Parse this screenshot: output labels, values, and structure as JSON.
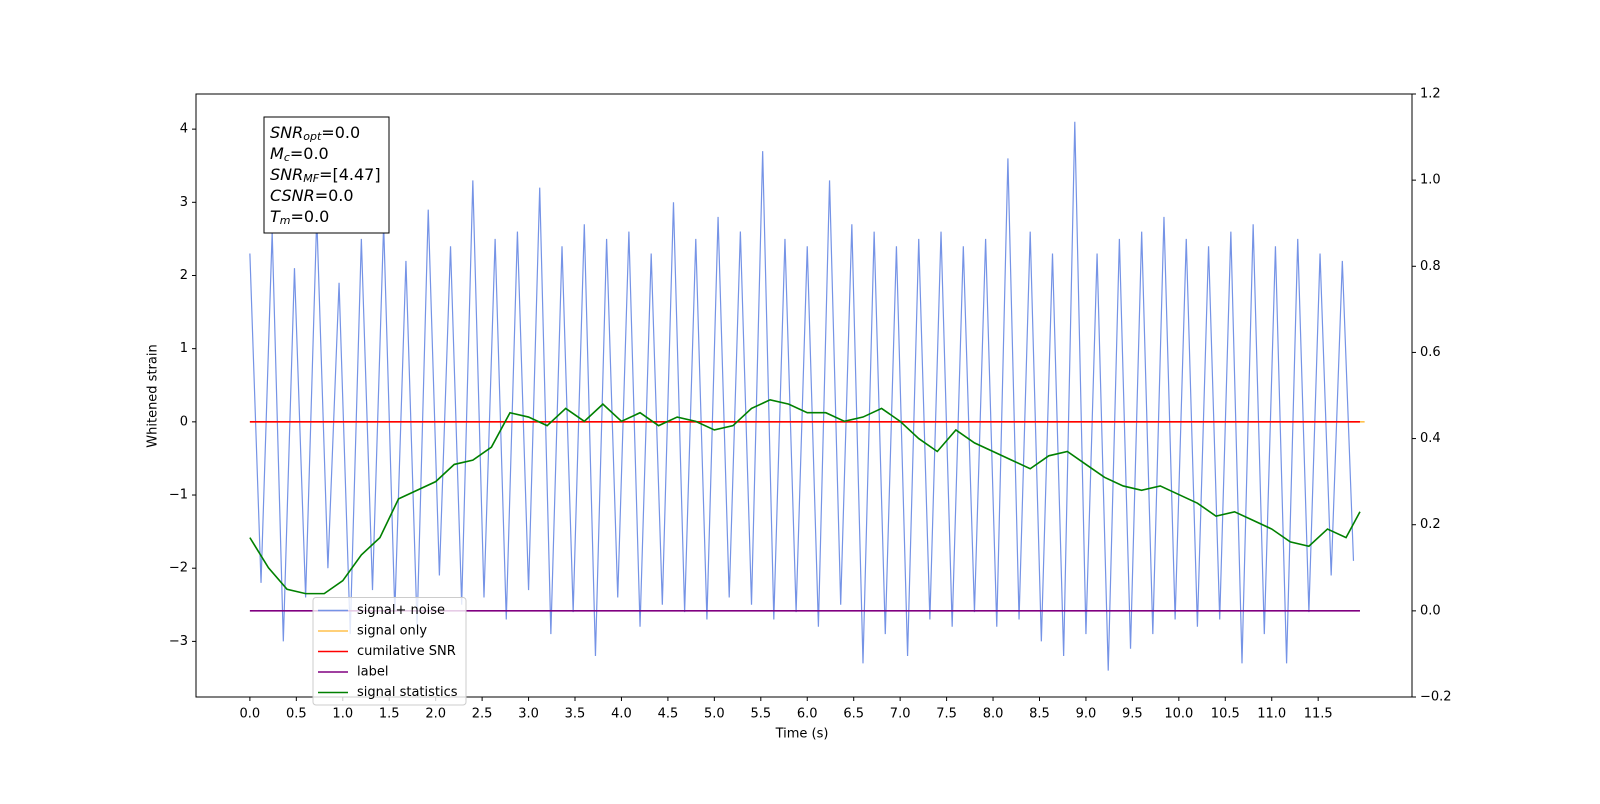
{
  "chart_data": {
    "type": "line",
    "xlabel": "Time (s)",
    "ylabel": "Whitened strain",
    "xlim": [
      -0.58,
      12.51
    ],
    "ylim": [
      -3.76,
      4.48
    ],
    "y2lim": [
      -0.2,
      1.2
    ],
    "xticks": [
      {
        "value": 0,
        "label": "0.0"
      },
      {
        "value": 0.5,
        "label": "0.5"
      },
      {
        "value": 1,
        "label": "1.0"
      },
      {
        "value": 1.5,
        "label": "1.5"
      },
      {
        "value": 2,
        "label": "2.0"
      },
      {
        "value": 2.5,
        "label": "2.5"
      },
      {
        "value": 3,
        "label": "3.0"
      },
      {
        "value": 3.5,
        "label": "3.5"
      },
      {
        "value": 4,
        "label": "4.0"
      },
      {
        "value": 4.5,
        "label": "4.5"
      },
      {
        "value": 5,
        "label": "5.0"
      },
      {
        "value": 5.5,
        "label": "5.5"
      },
      {
        "value": 6,
        "label": "6.0"
      },
      {
        "value": 6.5,
        "label": "6.5"
      },
      {
        "value": 7,
        "label": "7.0"
      },
      {
        "value": 7.5,
        "label": "7.5"
      },
      {
        "value": 8,
        "label": "8.0"
      },
      {
        "value": 8.5,
        "label": "8.5"
      },
      {
        "value": 9,
        "label": "9.0"
      },
      {
        "value": 9.5,
        "label": "9.5"
      },
      {
        "value": 10,
        "label": "10.0"
      },
      {
        "value": 10.5,
        "label": "10.5"
      },
      {
        "value": 11,
        "label": "11.0"
      },
      {
        "value": 11.5,
        "label": "11.5"
      }
    ],
    "yticks": [
      {
        "value": -3,
        "label": "−3"
      },
      {
        "value": -2,
        "label": "−2"
      },
      {
        "value": -1,
        "label": "−1"
      },
      0,
      1,
      2,
      3,
      4
    ],
    "y2ticks": [
      {
        "value": -0.2,
        "label": "−0.2"
      },
      {
        "value": 0,
        "label": "0.0"
      },
      0.2,
      0.4,
      0.6,
      0.8,
      {
        "value": 1,
        "label": "1.0"
      },
      1.2
    ],
    "legend": "lower left",
    "stats_box": [
      {
        "main": "SNR",
        "sub": "opt",
        "rest": "=0.0"
      },
      {
        "main": "M",
        "sub": "c",
        "rest": "=0.0"
      },
      {
        "main": "SNR",
        "sub": "MF",
        "rest": "=[4.47]"
      },
      {
        "main": "CSNR",
        "rest": "=0.0"
      },
      {
        "main": "T",
        "sub": "m",
        "rest": "=0.0"
      }
    ],
    "series": [
      {
        "name": "signal+ noise",
        "color": "#7593e6",
        "x": [
          0,
          0.12,
          0.24,
          0.36,
          0.48,
          0.6,
          0.72,
          0.84,
          0.96,
          1.08,
          1.2,
          1.32,
          1.44,
          1.56,
          1.68,
          1.8,
          1.92,
          2.04,
          2.16,
          2.28,
          2.4,
          2.52,
          2.64,
          2.76,
          2.88,
          3,
          3.12,
          3.24,
          3.36,
          3.48,
          3.6,
          3.72,
          3.84,
          3.96,
          4.08,
          4.2,
          4.32,
          4.44,
          4.56,
          4.68,
          4.8,
          4.92,
          5.04,
          5.16,
          5.28,
          5.4,
          5.52,
          5.64,
          5.76,
          5.88,
          6,
          6.12,
          6.24,
          6.36,
          6.48,
          6.6,
          6.72,
          6.84,
          6.96,
          7.08,
          7.2,
          7.32,
          7.44,
          7.56,
          7.68,
          7.8,
          7.92,
          8.04,
          8.16,
          8.28,
          8.4,
          8.52,
          8.64,
          8.76,
          8.88,
          9,
          9.12,
          9.24,
          9.36,
          9.48,
          9.6,
          9.72,
          9.84,
          9.96,
          10.08,
          10.2,
          10.32,
          10.44,
          10.56,
          10.68,
          10.8,
          10.92,
          11.04,
          11.16,
          11.28,
          11.4,
          11.52,
          11.64,
          11.76,
          11.88
        ],
        "values": [
          2.3,
          -2.2,
          2.6,
          -3.0,
          2.1,
          -2.4,
          2.8,
          -2.0,
          1.9,
          -2.9,
          2.5,
          -2.3,
          2.7,
          -2.6,
          2.2,
          -2.8,
          2.9,
          -2.1,
          2.4,
          -2.5,
          3.3,
          -2.4,
          2.5,
          -2.7,
          2.6,
          -2.3,
          3.2,
          -2.9,
          2.4,
          -2.6,
          2.7,
          -3.2,
          2.5,
          -2.4,
          2.6,
          -2.8,
          2.3,
          -2.5,
          3.0,
          -2.6,
          2.5,
          -2.7,
          2.8,
          -2.4,
          2.6,
          -2.5,
          3.7,
          -2.7,
          2.5,
          -2.6,
          2.4,
          -2.8,
          3.3,
          -2.5,
          2.7,
          -3.3,
          2.6,
          -2.9,
          2.4,
          -3.2,
          2.5,
          -2.7,
          2.6,
          -2.8,
          2.4,
          -2.6,
          2.5,
          -2.8,
          3.6,
          -2.7,
          2.6,
          -3.0,
          2.3,
          -3.2,
          4.1,
          -2.9,
          2.3,
          -3.4,
          2.5,
          -3.1,
          2.6,
          -2.9,
          2.8,
          -2.7,
          2.5,
          -2.8,
          2.4,
          -2.7,
          2.6,
          -3.3,
          2.7,
          -2.9,
          2.4,
          -3.3,
          2.5,
          -2.6,
          2.3,
          -2.1,
          2.2,
          -1.9
        ]
      },
      {
        "name": "signal only",
        "color": "#ffc04d",
        "x": [
          0,
          12
        ],
        "values": [
          0,
          0
        ]
      },
      {
        "name": "cumilative SNR",
        "color": "#ff0000",
        "x": [
          0,
          11.95
        ],
        "values": [
          0,
          0
        ]
      },
      {
        "name": "label",
        "color": "#800080",
        "axis": "y2",
        "x": [
          0,
          11.95
        ],
        "values": [
          0,
          0
        ]
      },
      {
        "name": "signal statistics",
        "color": "#008000",
        "axis": "y2",
        "x": [
          0,
          0.2,
          0.4,
          0.6,
          0.8,
          1,
          1.2,
          1.4,
          1.6,
          1.8,
          2,
          2.2,
          2.4,
          2.6,
          2.8,
          3,
          3.2,
          3.4,
          3.6,
          3.8,
          4,
          4.2,
          4.4,
          4.6,
          4.8,
          5,
          5.2,
          5.4,
          5.6,
          5.8,
          6,
          6.2,
          6.4,
          6.6,
          6.8,
          7,
          7.2,
          7.4,
          7.6,
          7.8,
          8,
          8.2,
          8.4,
          8.6,
          8.8,
          9,
          9.2,
          9.4,
          9.6,
          9.8,
          10,
          10.2,
          10.4,
          10.6,
          10.8,
          11,
          11.2,
          11.4,
          11.6,
          11.8,
          11.95
        ],
        "values": [
          0.17,
          0.1,
          0.05,
          0.04,
          0.04,
          0.07,
          0.13,
          0.17,
          0.26,
          0.28,
          0.3,
          0.34,
          0.35,
          0.38,
          0.46,
          0.45,
          0.43,
          0.47,
          0.44,
          0.48,
          0.44,
          0.46,
          0.43,
          0.45,
          0.44,
          0.42,
          0.43,
          0.47,
          0.49,
          0.48,
          0.46,
          0.46,
          0.44,
          0.45,
          0.47,
          0.44,
          0.4,
          0.37,
          0.42,
          0.39,
          0.37,
          0.35,
          0.33,
          0.36,
          0.37,
          0.34,
          0.31,
          0.29,
          0.28,
          0.29,
          0.27,
          0.25,
          0.22,
          0.23,
          0.21,
          0.19,
          0.16,
          0.15,
          0.19,
          0.17,
          0.23
        ]
      }
    ]
  }
}
